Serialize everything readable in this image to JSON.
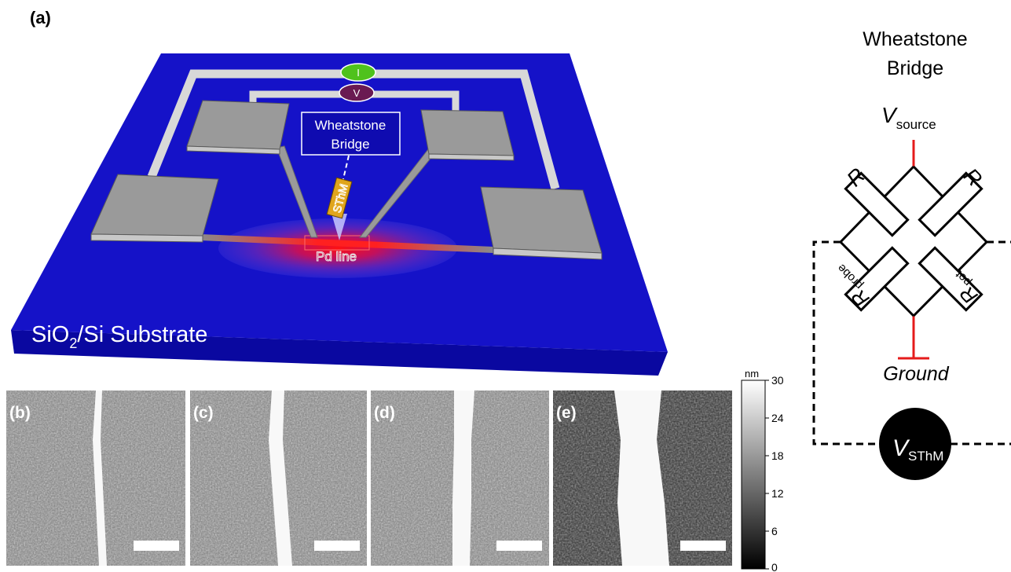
{
  "panel_a": {
    "label": "(a)",
    "meter_i": "I",
    "meter_v": "V",
    "bridge_box_line1": "Wheatstone",
    "bridge_box_line2": "Bridge",
    "tip_label": "SThM",
    "line_label": "Pd line",
    "substrate_main": "SiO",
    "substrate_sub": "2",
    "substrate_rest": "/Si Substrate"
  },
  "afm_panels": [
    {
      "label": "(b)"
    },
    {
      "label": "(c)"
    },
    {
      "label": "(d)"
    },
    {
      "label": "(e)"
    }
  ],
  "colorbar": {
    "unit": "nm",
    "ticks": [
      "30",
      "24",
      "18",
      "12",
      "6",
      "0"
    ],
    "min": 0,
    "max": 30
  },
  "circuit": {
    "title_line1": "Wheatstone",
    "title_line2": "Bridge",
    "vsource_main": "V",
    "vsource_sub": "source",
    "r_top_left": "R",
    "r_top_right": "R",
    "r_probe_main": "R",
    "r_probe_sub": "probe",
    "r_pot_main": "R",
    "r_pot_sub": "pot",
    "ground": "Ground",
    "vsthm_main": "V",
    "vsthm_sub": "SThM"
  },
  "colors": {
    "substrate_top": "#1512c8",
    "substrate_side": "#0a08a0",
    "pad": "#9a9a9a",
    "red_wire": "#e51b1b",
    "meter_i": "#4fc21c",
    "meter_v": "#6a1a52"
  }
}
